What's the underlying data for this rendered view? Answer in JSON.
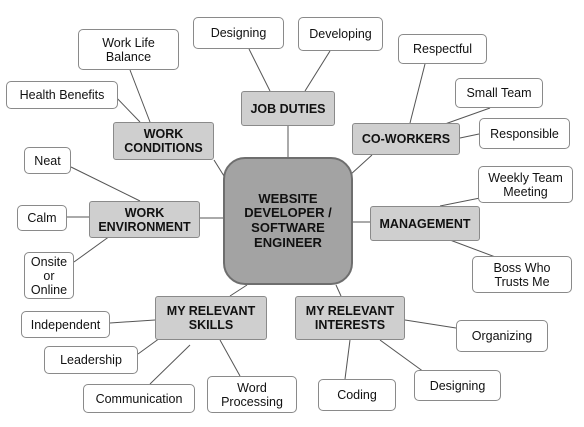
{
  "center": "WEBSITE\nDEVELOPER /\nSOFTWARE\nENGINEER",
  "categories": {
    "job_duties": "JOB DUTIES",
    "co_workers": "CO-WORKERS",
    "management": "MANAGEMENT",
    "relevant_interests": "MY RELEVANT\nINTERESTS",
    "relevant_skills": "MY RELEVANT\nSKILLS",
    "work_environment": "WORK\nENVIRONMENT",
    "work_conditions": "WORK\nCONDITIONS"
  },
  "leaves": {
    "designing_duty": "Designing",
    "developing": "Developing",
    "respectful": "Respectful",
    "small_team": "Small Team",
    "responsible": "Responsible",
    "weekly_meeting": "Weekly Team\nMeeting",
    "boss_trusts": "Boss Who\nTrusts Me",
    "organizing": "Organizing",
    "designing_interest": "Designing",
    "coding": "Coding",
    "word_processing": "Word\nProcessing",
    "communication": "Communication",
    "leadership": "Leadership",
    "independent": "Independent",
    "onsite_online": "Onsite\nor\nOnline",
    "calm": "Calm",
    "neat": "Neat",
    "health_benefits": "Health Benefits",
    "work_life_balance": "Work Life\nBalance"
  }
}
